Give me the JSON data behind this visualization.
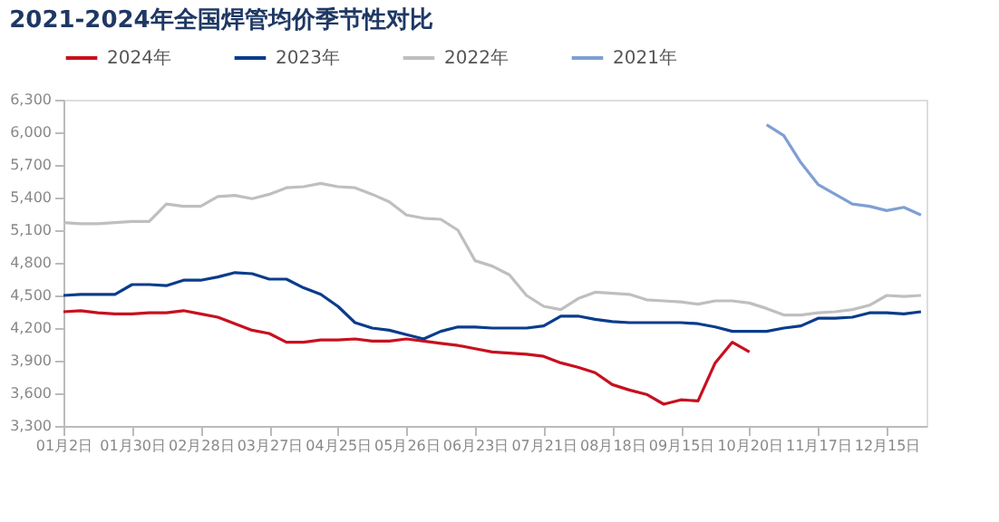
{
  "chart_data": {
    "type": "line",
    "title": "2021-2024年全国焊管均价季节性对比",
    "legend": "top",
    "categories": [
      "01月2日",
      null,
      null,
      null,
      "01月30日",
      null,
      null,
      null,
      "02月28日",
      null,
      null,
      null,
      "03月27日",
      null,
      null,
      null,
      "04月25日",
      null,
      null,
      null,
      "05月26日",
      null,
      null,
      null,
      "06月23日",
      null,
      null,
      null,
      "07月21日",
      null,
      null,
      null,
      "08月18日",
      null,
      null,
      null,
      "09月15日",
      null,
      null,
      null,
      "10月20日",
      null,
      null,
      null,
      "11月17日",
      null,
      null,
      null,
      "12月15日",
      null,
      null
    ],
    "ylim": [
      3300,
      6300
    ],
    "yticks": [
      {
        "value": 3300,
        "label": "3,300"
      },
      {
        "value": 3600,
        "label": "3,600"
      },
      {
        "value": 3900,
        "label": "3,900"
      },
      {
        "value": 4200,
        "label": "4,200"
      },
      {
        "value": 4500,
        "label": "4,500"
      },
      {
        "value": 4800,
        "label": "4,800"
      },
      {
        "value": 5100,
        "label": "5,100"
      },
      {
        "value": 5400,
        "label": "5,400"
      },
      {
        "value": 5700,
        "label": "5,700"
      },
      {
        "value": 6000,
        "label": "6,000"
      },
      {
        "value": 6300,
        "label": "6,300"
      }
    ],
    "series": [
      {
        "name": "2024年",
        "color": "#c8101e",
        "values": [
          4350,
          4360,
          4340,
          4330,
          4330,
          4340,
          4340,
          4360,
          4330,
          4300,
          4240,
          4180,
          4150,
          4070,
          4070,
          4090,
          4090,
          4100,
          4080,
          4080,
          4100,
          4080,
          4060,
          4040,
          4010,
          3980,
          3970,
          3960,
          3940,
          3880,
          3840,
          3790,
          3680,
          3630,
          3590,
          3500,
          3540,
          3530,
          3880,
          4070,
          3980,
          null,
          null,
          null,
          null,
          null,
          null,
          null,
          null,
          null,
          null
        ]
      },
      {
        "name": "2023年",
        "color": "#0a3c8c",
        "values": [
          4500,
          4510,
          4510,
          4510,
          4600,
          4600,
          4590,
          4640,
          4640,
          4670,
          4710,
          4700,
          4650,
          4650,
          4570,
          4510,
          4400,
          4250,
          4200,
          4180,
          4140,
          4100,
          4170,
          4210,
          4210,
          4200,
          4200,
          4200,
          4220,
          4310,
          4310,
          4280,
          4260,
          4250,
          4250,
          4250,
          4250,
          4240,
          4210,
          4170,
          4170,
          4170,
          4200,
          4220,
          4290,
          4290,
          4300,
          4340,
          4340,
          4330,
          4350
        ]
      },
      {
        "name": "2022年",
        "color": "#bfbfbf",
        "values": [
          5170,
          5160,
          5160,
          5170,
          5180,
          5180,
          5340,
          5320,
          5320,
          5410,
          5420,
          5390,
          5430,
          5490,
          5500,
          5530,
          5500,
          5490,
          5430,
          5360,
          5240,
          5210,
          5200,
          5100,
          4820,
          4770,
          4690,
          4500,
          4400,
          4370,
          4470,
          4530,
          4520,
          4510,
          4460,
          4450,
          4440,
          4420,
          4450,
          4450,
          4430,
          4380,
          4320,
          4320,
          4340,
          4350,
          4370,
          4410,
          4500,
          4490,
          4500
        ]
      },
      {
        "name": "2021年",
        "color": "#7f9fd3",
        "values": [
          null,
          null,
          null,
          null,
          null,
          null,
          null,
          null,
          null,
          null,
          null,
          null,
          null,
          null,
          null,
          null,
          null,
          null,
          null,
          null,
          null,
          null,
          null,
          null,
          null,
          null,
          null,
          null,
          null,
          null,
          null,
          null,
          null,
          null,
          null,
          null,
          null,
          null,
          null,
          null,
          null,
          6070,
          5970,
          5720,
          5520,
          5430,
          5340,
          5320,
          5280,
          5310,
          5240
        ]
      }
    ]
  }
}
